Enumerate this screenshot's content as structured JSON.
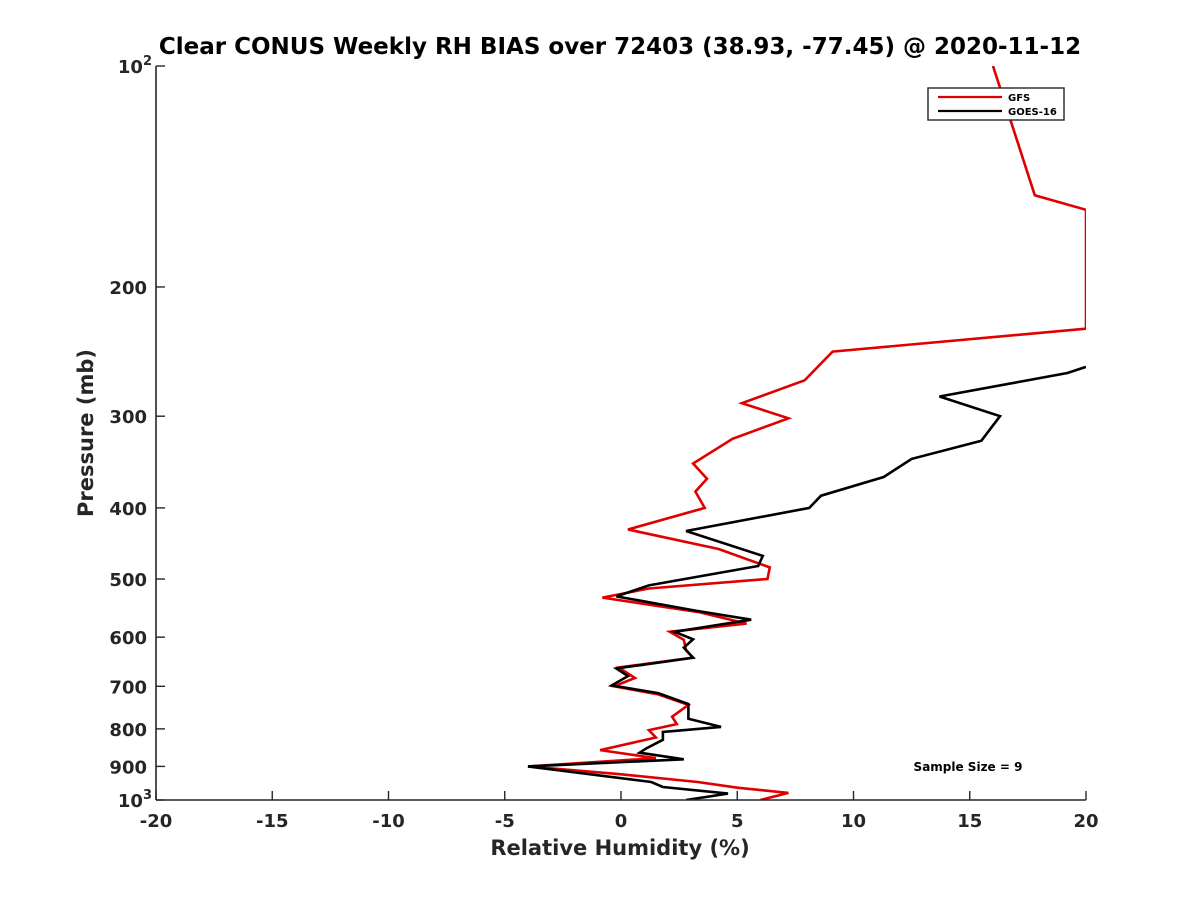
{
  "chart_data": {
    "type": "line",
    "title": "Clear CONUS Weekly RH BIAS over 72403 (38.93, -77.45) @ 2020-11-12",
    "xlabel": "Relative Humidity (%)",
    "ylabel": "Pressure (mb)",
    "xlim": [
      -20,
      20
    ],
    "ylim": [
      100,
      1000
    ],
    "y_scale": "log",
    "y_reversed": true,
    "x_ticks": [
      "-20",
      "-15",
      "-10",
      "-5",
      "0",
      "5",
      "10",
      "15",
      "20"
    ],
    "x_tick_values": [
      -20,
      -15,
      -10,
      -5,
      0,
      5,
      10,
      15,
      20
    ],
    "y_ticks": [
      {
        "value": 100,
        "base": "10",
        "exp": "2"
      },
      {
        "value": 200,
        "label": "200"
      },
      {
        "value": 300,
        "label": "300"
      },
      {
        "value": 400,
        "label": "400"
      },
      {
        "value": 500,
        "label": "500"
      },
      {
        "value": 600,
        "label": "600"
      },
      {
        "value": 700,
        "label": "700"
      },
      {
        "value": 800,
        "label": "800"
      },
      {
        "value": 900,
        "label": "900"
      },
      {
        "value": 1000,
        "base": "10",
        "exp": "3"
      }
    ],
    "grid": false,
    "legend_position": "top-right",
    "annotation": "Sample Size = 9",
    "series": [
      {
        "name": "GFS",
        "color": "#e00000",
        "points": [
          [
            16.0,
            100
          ],
          [
            17.8,
            150
          ],
          [
            20.0,
            157
          ],
          [
            20.0,
            228
          ],
          [
            9.1,
            245
          ],
          [
            7.9,
            268
          ],
          [
            5.2,
            288
          ],
          [
            7.2,
            302
          ],
          [
            4.8,
            322
          ],
          [
            3.1,
            348
          ],
          [
            3.7,
            365
          ],
          [
            3.2,
            380
          ],
          [
            3.6,
            400
          ],
          [
            0.3,
            428
          ],
          [
            4.2,
            455
          ],
          [
            6.4,
            482
          ],
          [
            6.3,
            500
          ],
          [
            1.2,
            515
          ],
          [
            -0.8,
            530
          ],
          [
            3.4,
            555
          ],
          [
            5.4,
            575
          ],
          [
            2.1,
            590
          ],
          [
            2.7,
            605
          ],
          [
            2.8,
            625
          ],
          [
            3.1,
            640
          ],
          [
            -0.1,
            660
          ],
          [
            0.6,
            682
          ],
          [
            -0.3,
            700
          ],
          [
            1.6,
            718
          ],
          [
            2.9,
            742
          ],
          [
            2.2,
            770
          ],
          [
            2.4,
            788
          ],
          [
            1.2,
            803
          ],
          [
            1.5,
            822
          ],
          [
            -0.9,
            855
          ],
          [
            1.5,
            877
          ],
          [
            -4.0,
            900
          ],
          [
            -0.1,
            922
          ],
          [
            3.3,
            945
          ],
          [
            5.0,
            962
          ],
          [
            7.2,
            978
          ],
          [
            6.0,
            1000
          ]
        ]
      },
      {
        "name": "GOES-16",
        "color": "#000000",
        "points": [
          [
            20.0,
            257
          ],
          [
            19.2,
            262
          ],
          [
            13.7,
            282
          ],
          [
            16.3,
            300
          ],
          [
            15.5,
            324
          ],
          [
            12.5,
            343
          ],
          [
            11.3,
            363
          ],
          [
            8.6,
            385
          ],
          [
            8.1,
            400
          ],
          [
            2.8,
            430
          ],
          [
            6.1,
            465
          ],
          [
            5.9,
            480
          ],
          [
            1.2,
            510
          ],
          [
            -0.2,
            528
          ],
          [
            3.2,
            552
          ],
          [
            5.6,
            568
          ],
          [
            2.3,
            590
          ],
          [
            3.1,
            604
          ],
          [
            2.7,
            620
          ],
          [
            3.1,
            640
          ],
          [
            -0.2,
            662
          ],
          [
            0.3,
            678
          ],
          [
            -0.4,
            698
          ],
          [
            1.6,
            715
          ],
          [
            2.9,
            740
          ],
          [
            2.9,
            775
          ],
          [
            4.3,
            795
          ],
          [
            1.8,
            808
          ],
          [
            1.8,
            828
          ],
          [
            1.1,
            850
          ],
          [
            0.8,
            862
          ],
          [
            2.7,
            880
          ],
          [
            -4.0,
            900
          ],
          [
            1.3,
            945
          ],
          [
            1.8,
            960
          ],
          [
            4.6,
            980
          ],
          [
            2.8,
            1000
          ]
        ]
      }
    ]
  }
}
